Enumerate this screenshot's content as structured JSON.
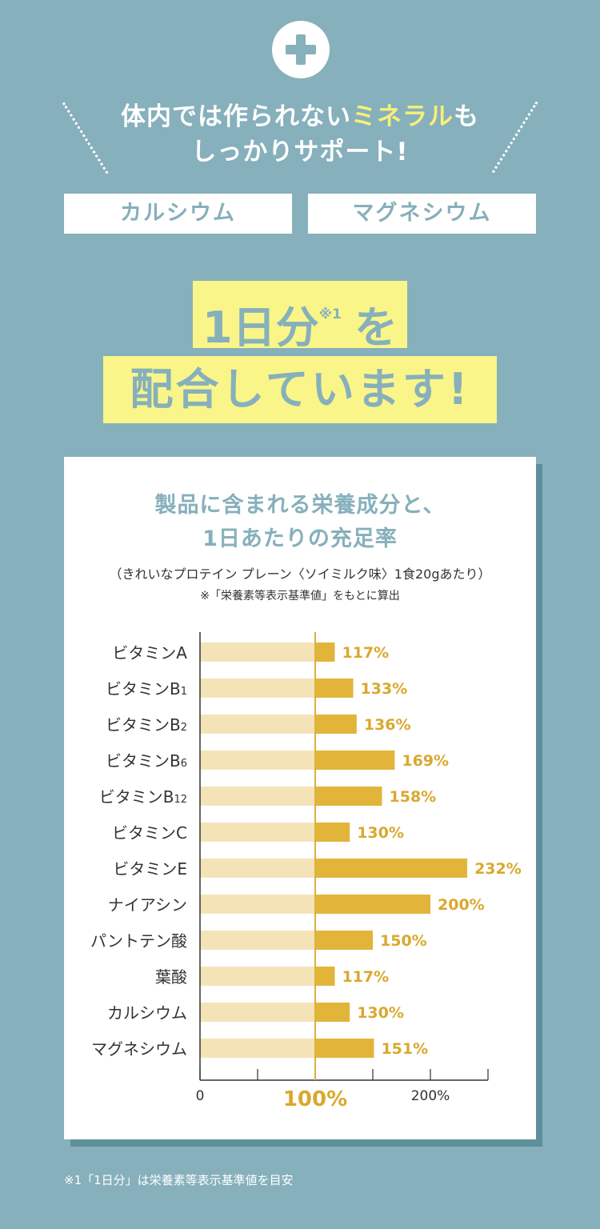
{
  "header": {
    "headline_a": "体内では作られない",
    "headline_highlight": "ミネラル",
    "headline_b": "も",
    "headline_line2": "しっかりサポート!",
    "minerals": [
      "カルシウム",
      "マグネシウム"
    ]
  },
  "banner": {
    "line1_main": "1日分",
    "line1_note": "※1",
    "line1_end": "を",
    "line2": "配合しています!"
  },
  "card": {
    "title_line1": "製品に含まれる栄養成分と、",
    "title_line2": "1日あたりの充足率",
    "subtitle": "（きれいなプロテイン プレーン〈ソイミルク味〉1食20gあたり）",
    "source_note": "※「栄養素等表示基準値」をもとに算出"
  },
  "chart_data": {
    "type": "bar",
    "orientation": "horizontal",
    "categories": [
      "ビタミンA",
      "ビタミンB1",
      "ビタミンB2",
      "ビタミンB6",
      "ビタミンB12",
      "ビタミンC",
      "ビタミンE",
      "ナイアシン",
      "パントテン酸",
      "葉酸",
      "カルシウム",
      "マグネシウム"
    ],
    "values": [
      117,
      133,
      136,
      169,
      158,
      130,
      232,
      200,
      150,
      117,
      130,
      151
    ],
    "value_labels": [
      "117%",
      "133%",
      "136%",
      "169%",
      "158%",
      "130%",
      "232%",
      "200%",
      "150%",
      "117%",
      "130%",
      "151%"
    ],
    "unit": "%",
    "xlim": [
      0,
      250
    ],
    "reference_line": 100,
    "x_tick_labels": [
      "0",
      "100%",
      "200%"
    ],
    "x_tick_values": [
      0,
      100,
      200
    ],
    "colors": {
      "base": "#f5e3b8",
      "excess": "#e2b43a",
      "label": "#d9a82e",
      "reference": "#d9b240",
      "axis": "#333333"
    }
  },
  "footnote": "※1「1日分」は栄養素等表示基準値を目安"
}
